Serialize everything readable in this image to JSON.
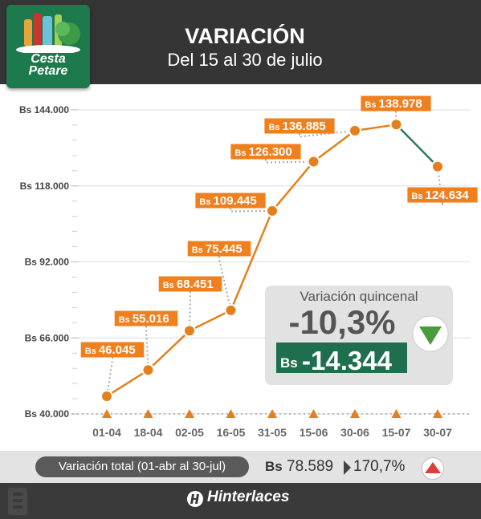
{
  "header": {
    "logo_line1": "Cesta",
    "logo_line2": "Petare",
    "title": "VARIACIÓN",
    "subtitle": "Del 15 al 30 de julio"
  },
  "chart_data": {
    "type": "line",
    "categories": [
      "01-04",
      "18-04",
      "02-05",
      "16-05",
      "31-05",
      "15-06",
      "30-06",
      "15-07",
      "30-07"
    ],
    "values": [
      46045,
      55016,
      68451,
      75445,
      109445,
      126300,
      136885,
      138978,
      124634
    ],
    "data_labels": [
      "46.045",
      "55.016",
      "68.451",
      "75.445",
      "109.445",
      "126.300",
      "136.885",
      "138.978",
      "124.634"
    ],
    "currency_prefix": "Bs",
    "ylim": [
      40000,
      144000
    ],
    "y_ticks": [
      "Bs 144.000",
      "Bs 118.000",
      "Bs 92.000",
      "Bs 66.000",
      "Bs 40.000"
    ],
    "y_tick_values": [
      144000,
      118000,
      92000,
      66000,
      40000
    ],
    "line_color": "#e3801d",
    "decline_color": "#2a7a5e",
    "label_color": "#f07f1e",
    "grid": true
  },
  "panel": {
    "title": "Variación quincenal",
    "percent": "-10,3%",
    "currency": "Bs",
    "amount": "-14.344",
    "trend": "down-arrow-icon",
    "trend_color": "#4a9a3e"
  },
  "footer": {
    "total_label": "Variación total (01-abr al 30-jul)",
    "total_currency": "Bs",
    "total_amount": "78.589",
    "total_percent": "170,7%",
    "trend": "up-arrow-icon",
    "trend_color": "#d9423a",
    "brand": "Hinterlaces"
  }
}
